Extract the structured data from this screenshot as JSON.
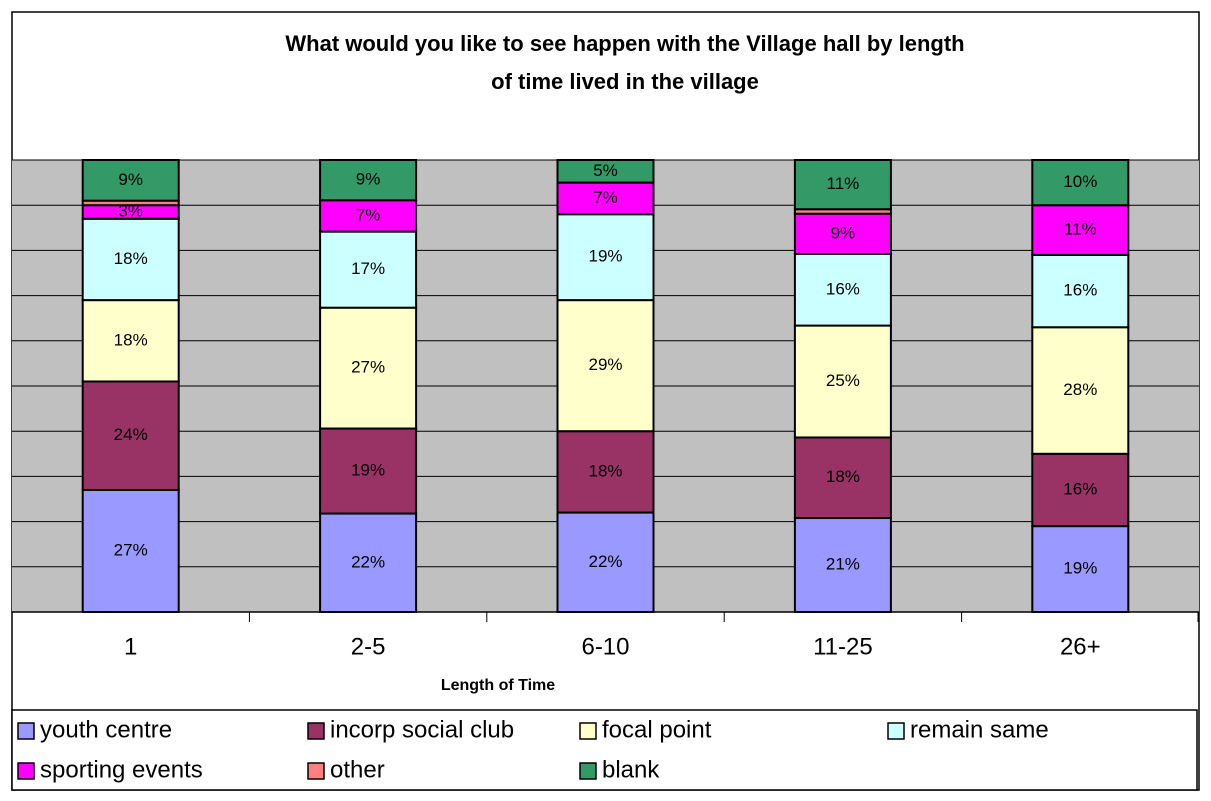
{
  "chart_data": {
    "type": "stacked_percent_bar",
    "title": "What would you like to see happen with the Village hall by length\nof time lived in the village",
    "x_label": "Length of Time",
    "categories": [
      "1",
      "2-5",
      "6-10",
      "11-25",
      "26+"
    ],
    "series": [
      {
        "name": "youth centre",
        "color": "#9999ff",
        "values": [
          27,
          22,
          22,
          21,
          19
        ],
        "value_labels": [
          "27%",
          "22%",
          "22%",
          "21%",
          "19%"
        ]
      },
      {
        "name": "incorp social club",
        "color": "#993366",
        "values": [
          24,
          19,
          18,
          18,
          16
        ],
        "value_labels": [
          "24%",
          "19%",
          "18%",
          "18%",
          "16%"
        ]
      },
      {
        "name": "focal point",
        "color": "#ffffcc",
        "values": [
          18,
          27,
          29,
          25,
          28
        ],
        "value_labels": [
          "18%",
          "27%",
          "29%",
          "25%",
          "28%"
        ]
      },
      {
        "name": "remain same",
        "color": "#ccffff",
        "values": [
          18,
          17,
          19,
          16,
          16
        ],
        "value_labels": [
          "18%",
          "17%",
          "19%",
          "16%",
          "16%"
        ]
      },
      {
        "name": "sporting events",
        "color": "#ff00ff",
        "values": [
          3,
          7,
          7,
          9,
          11
        ],
        "value_labels": [
          "3%",
          "7%",
          "7%",
          "9%",
          "11%"
        ]
      },
      {
        "name": "other",
        "color": "#ff8080",
        "values": [
          1,
          0,
          0,
          1,
          0
        ]
      },
      {
        "name": "blank",
        "color": "#339966",
        "values": [
          9,
          9,
          5,
          11,
          10
        ],
        "value_labels": [
          "9%",
          "9%",
          "5%",
          "11%",
          "10%"
        ]
      }
    ],
    "ylim": [
      0,
      100
    ],
    "yticks": [
      0,
      10,
      20,
      30,
      40,
      50,
      60,
      70,
      80,
      90,
      100
    ],
    "show_ytick_labels": false,
    "grid": true,
    "plot_background": "#c0c0c0",
    "legend": "bottom"
  }
}
